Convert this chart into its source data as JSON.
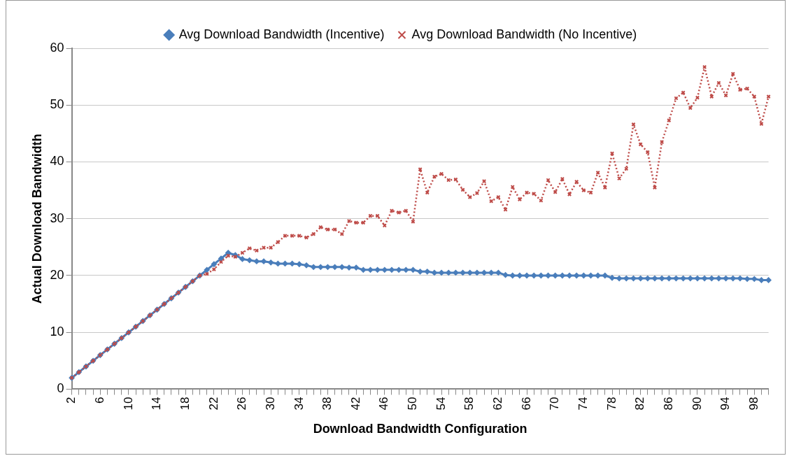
{
  "chart_data": {
    "type": "line",
    "xlabel": "Download Bandwidth Configuration",
    "ylabel": "Actual Download Bandwidth",
    "categories": [
      "2",
      null,
      null,
      null,
      "6",
      null,
      null,
      null,
      "10",
      null,
      null,
      null,
      "14",
      null,
      null,
      null,
      "18",
      null,
      null,
      null,
      "22",
      null,
      null,
      null,
      "26",
      null,
      null,
      null,
      "30",
      null,
      null,
      null,
      "34",
      null,
      null,
      null,
      "38",
      null,
      null,
      null,
      "42",
      null,
      null,
      null,
      "46",
      null,
      null,
      null,
      "50",
      null,
      null,
      null,
      "54",
      null,
      null,
      null,
      "58",
      null,
      null,
      null,
      "62",
      null,
      null,
      null,
      "66",
      null,
      null,
      null,
      "70",
      null,
      null,
      null,
      "74",
      null,
      null,
      null,
      "78",
      null,
      null,
      null,
      "82",
      null,
      null,
      null,
      "86",
      null,
      null,
      null,
      "90",
      null,
      null,
      null,
      "94",
      null,
      null,
      null,
      "98",
      null,
      null
    ],
    "series": [
      {
        "name": "Avg Download Bandwidth (Incentive)",
        "color": "#4a7ebb",
        "marker": "diamond",
        "line_style": "solid",
        "values": [
          2,
          3,
          4,
          5,
          6,
          7,
          8,
          9,
          10,
          11,
          12,
          13,
          14,
          15,
          16,
          17,
          18,
          19,
          20,
          21,
          22,
          23,
          24,
          23.6,
          22.9,
          22.7,
          22.5,
          22.5,
          22.3,
          22.1,
          22.1,
          22.1,
          22.0,
          21.8,
          21.5,
          21.5,
          21.5,
          21.5,
          21.5,
          21.4,
          21.4,
          21.0,
          21.0,
          21.0,
          21.0,
          21.0,
          21.0,
          21.0,
          21.0,
          20.7,
          20.7,
          20.5,
          20.5,
          20.5,
          20.5,
          20.5,
          20.5,
          20.5,
          20.5,
          20.5,
          20.5,
          20.1,
          20.0,
          20.0,
          20.0,
          20.0,
          20.0,
          20.0,
          20.0,
          20.0,
          20.0,
          20.0,
          20.0,
          20.0,
          20.0,
          20.0,
          19.6,
          19.5,
          19.5,
          19.5,
          19.5,
          19.5,
          19.5,
          19.5,
          19.5,
          19.5,
          19.5,
          19.5,
          19.5,
          19.5,
          19.5,
          19.5,
          19.5,
          19.5,
          19.5,
          19.4,
          19.4,
          19.2,
          19.2
        ]
      },
      {
        "name": "Avg Download Bandwidth (No Incentive)",
        "color": "#be4b48",
        "marker": "cross",
        "line_style": "dotted",
        "values": [
          2,
          3,
          4,
          5,
          6,
          7,
          8,
          9,
          10,
          11,
          12,
          13,
          14,
          15,
          16,
          17,
          18,
          19,
          20,
          20.3,
          21.1,
          22.4,
          23.5,
          23.3,
          24.0,
          24.8,
          24.4,
          24.9,
          24.9,
          25.9,
          27.0,
          27.0,
          27.0,
          26.7,
          27.3,
          28.5,
          28.1,
          28.1,
          27.3,
          29.6,
          29.3,
          29.3,
          30.5,
          30.5,
          28.8,
          31.4,
          31.1,
          31.4,
          29.5,
          38.7,
          34.6,
          37.4,
          37.9,
          36.8,
          36.9,
          35.1,
          33.8,
          34.5,
          36.6,
          33.1,
          33.8,
          31.6,
          35.6,
          33.4,
          34.6,
          34.4,
          33.2,
          36.8,
          34.7,
          37.0,
          34.3,
          36.5,
          35.0,
          34.6,
          38.1,
          35.5,
          41.5,
          37.1,
          38.8,
          46.6,
          43.1,
          41.7,
          35.5,
          43.5,
          47.3,
          51.2,
          52.2,
          49.5,
          51.3,
          56.7,
          51.5,
          53.9,
          51.7,
          55.5,
          52.7,
          52.9,
          51.5,
          46.7,
          51.5
        ]
      }
    ],
    "ylim": [
      0,
      60
    ],
    "yticks": [
      0,
      10,
      20,
      30,
      40,
      50,
      60
    ],
    "grid": "y",
    "legend": "top"
  }
}
